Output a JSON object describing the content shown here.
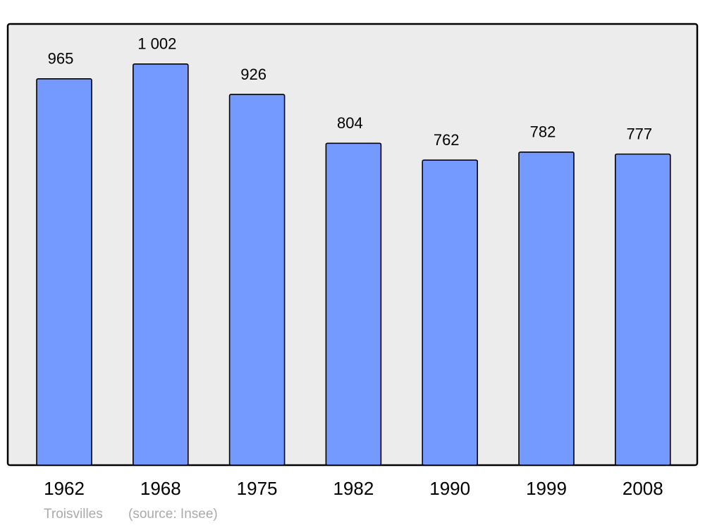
{
  "chart_data": {
    "type": "bar",
    "categories": [
      "1962",
      "1968",
      "1975",
      "1982",
      "1990",
      "1999",
      "2008"
    ],
    "values": [
      965,
      1002,
      926,
      804,
      762,
      782,
      777
    ],
    "value_labels": [
      "965",
      "1 002",
      "926",
      "804",
      "762",
      "782",
      "777"
    ],
    "color": "#7499ff",
    "ylim": [
      0,
      1102
    ],
    "note": "Troisvilles",
    "source": "(source: Insee)"
  }
}
